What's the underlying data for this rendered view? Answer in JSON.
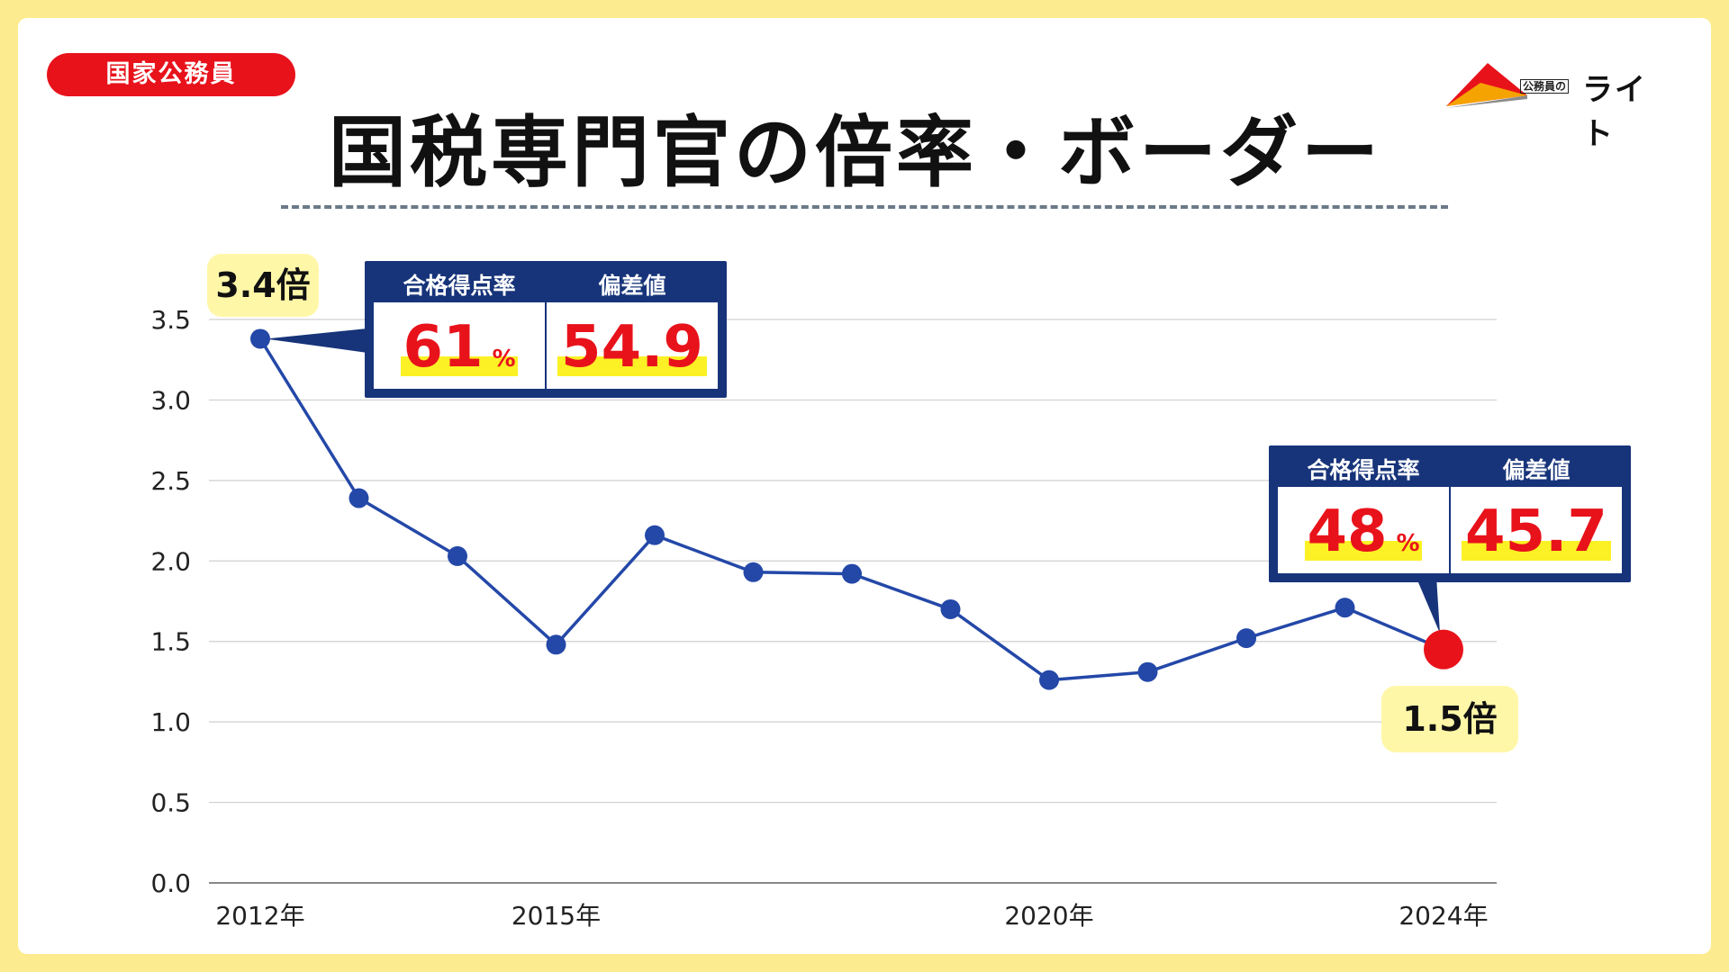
{
  "category_label": "国家公務員",
  "title": "国税専門官の倍率・ボーダー",
  "logo": {
    "small": "公務員の",
    "main": "ライト"
  },
  "chart_data": {
    "type": "line",
    "title": "国税専門官の倍率・ボーダー",
    "xlabel": "",
    "ylabel": "",
    "ylim": [
      0,
      3.5
    ],
    "yticks": [
      "0.0",
      "0.5",
      "1.0",
      "1.5",
      "2.0",
      "2.5",
      "3.0",
      "3.5"
    ],
    "grid": true,
    "x": [
      2012,
      2013,
      2014,
      2015,
      2016,
      2017,
      2018,
      2019,
      2020,
      2021,
      2022,
      2023,
      2024
    ],
    "x_tick_labels": [
      {
        "year": 2012,
        "label": "2012年"
      },
      {
        "year": 2015,
        "label": "2015年"
      },
      {
        "year": 2020,
        "label": "2020年"
      },
      {
        "year": 2024,
        "label": "2024年"
      }
    ],
    "series": [
      {
        "name": "倍率",
        "values": [
          3.38,
          2.39,
          2.03,
          1.48,
          2.16,
          1.93,
          1.92,
          1.7,
          1.26,
          1.31,
          1.52,
          1.71,
          1.45
        ],
        "color": "#2448a8",
        "highlight_color": "#e8121b"
      }
    ],
    "annotations": [
      {
        "year": 2012,
        "ratio_label": "3.4倍",
        "pass_rate_header": "合格得点率",
        "pass_rate": "61",
        "pass_rate_unit": "%",
        "deviation_header": "偏差値",
        "deviation": "54.9"
      },
      {
        "year": 2024,
        "ratio_label": "1.5倍",
        "pass_rate_header": "合格得点率",
        "pass_rate": "48",
        "pass_rate_unit": "%",
        "deviation_header": "偏差値",
        "deviation": "45.7"
      }
    ]
  },
  "colors": {
    "background": "#fdeb8f",
    "accent_red": "#e8121b",
    "navy": "#17347a",
    "line": "#2448a8",
    "bubble": "#fff7a8",
    "highlight": "#fbf125"
  }
}
